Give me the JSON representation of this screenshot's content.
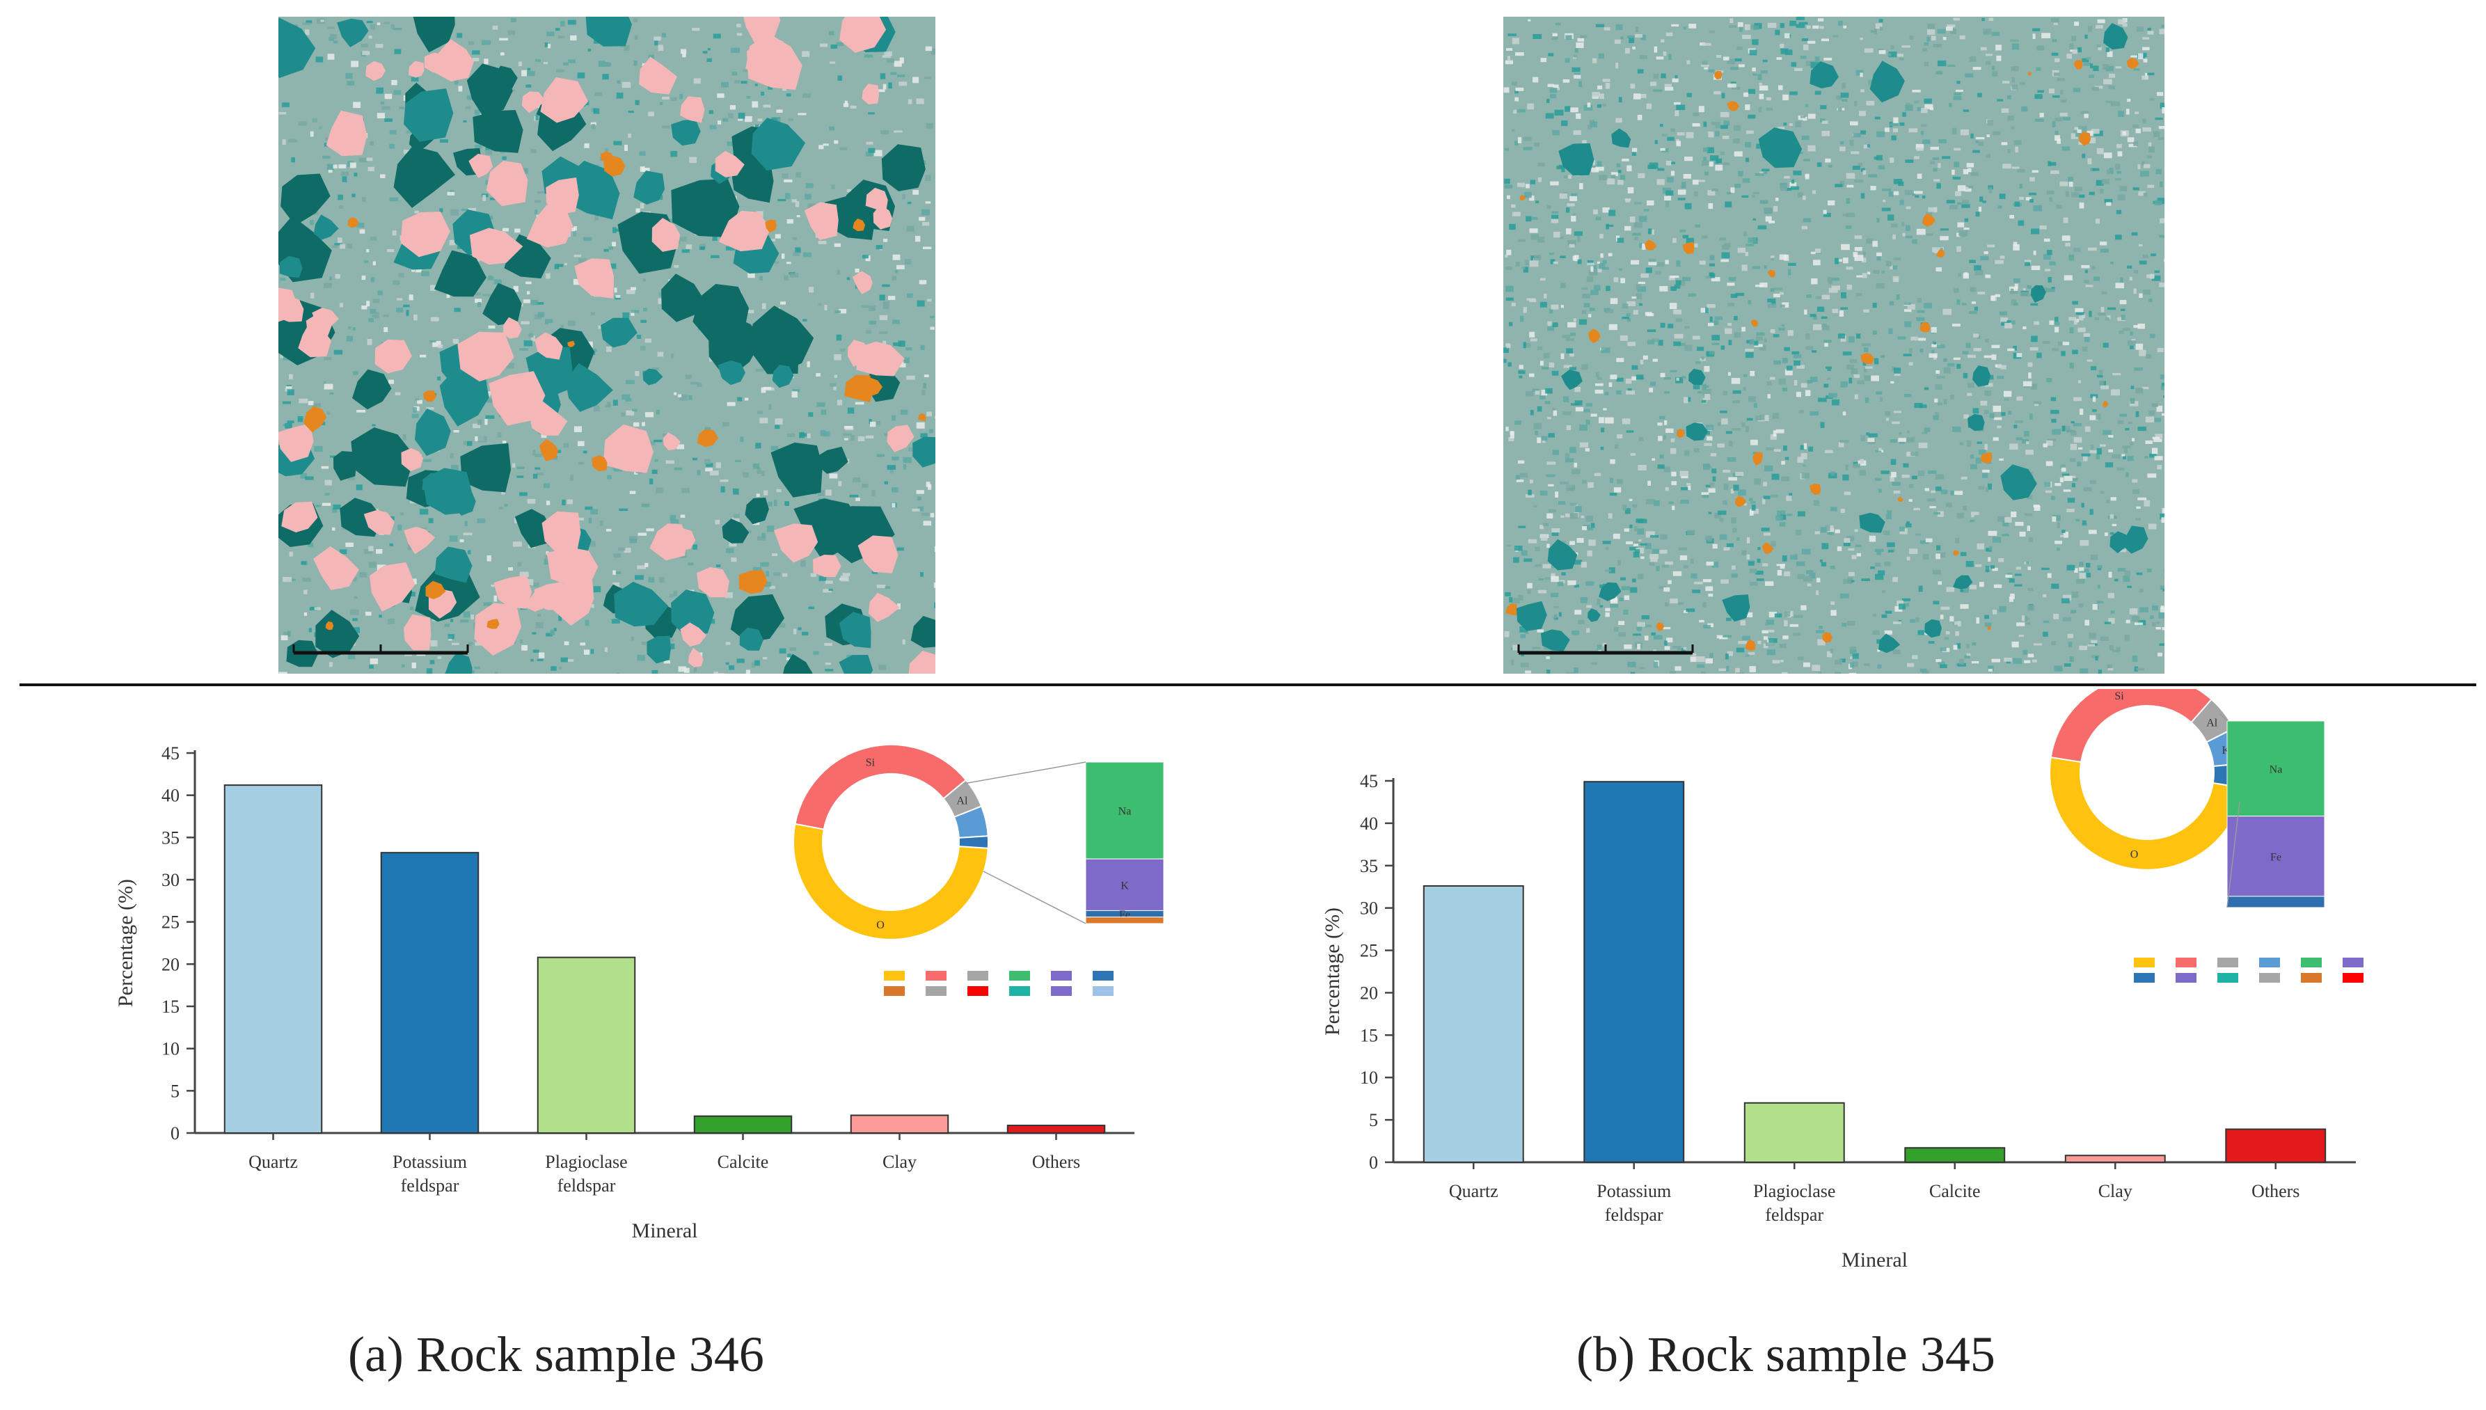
{
  "colors": {
    "quartz": "#a6cee3",
    "potassium_feldspar": "#1f78b4",
    "plagioclase_feldspar": "#b2df8a",
    "calcite": "#33a02c",
    "clay": "#fb9a99",
    "others": "#e31a1c",
    "micro_matrix": "#8fb3ad",
    "micro_teal": "#1e8c8c",
    "micro_dark": "#0e6b66",
    "micro_pink": "#f4b6b6",
    "micro_orange": "#e5861e"
  },
  "chart_data": [
    {
      "type": "bar",
      "caption": "(a) Rock sample 346",
      "categories": [
        "Quartz",
        "Potassium feldspar",
        "Plagioclase feldspar",
        "Calcite",
        "Clay",
        "Others"
      ],
      "category_lines": [
        [
          "Quartz"
        ],
        [
          "Potassium",
          "feldspar"
        ],
        [
          "Plagioclase",
          "feldspar"
        ],
        [
          "Calcite"
        ],
        [
          "Clay"
        ],
        [
          "Others"
        ]
      ],
      "values": [
        41.2,
        33.2,
        20.8,
        2.0,
        2.1,
        0.9
      ],
      "xlabel": "Mineral",
      "ylabel": "Percentage (%)",
      "ylim": [
        0,
        45
      ],
      "yticks": [
        0,
        5,
        10,
        15,
        20,
        25,
        30,
        35,
        40,
        45
      ],
      "grid": false,
      "legend": "none"
    },
    {
      "type": "bar",
      "caption": "(b) Rock sample 345",
      "categories": [
        "Quartz",
        "Potassium feldspar",
        "Plagioclase feldspar",
        "Calcite",
        "Clay",
        "Others"
      ],
      "category_lines": [
        [
          "Quartz"
        ],
        [
          "Potassium",
          "feldspar"
        ],
        [
          "Plagioclase",
          "feldspar"
        ],
        [
          "Calcite"
        ],
        [
          "Clay"
        ],
        [
          "Others"
        ]
      ],
      "values": [
        32.6,
        44.9,
        7.0,
        1.7,
        0.8,
        3.9
      ],
      "xlabel": "Mineral",
      "ylabel": "Percentage (%)",
      "ylim": [
        0,
        45
      ],
      "yticks": [
        0,
        5,
        10,
        15,
        20,
        25,
        30,
        35,
        40,
        45
      ],
      "grid": false,
      "legend": "none"
    }
  ],
  "inset_a": {
    "donut_labels": [
      "O",
      "Si",
      "Al"
    ],
    "donut": [
      {
        "value": 52,
        "color": "#ffc20e"
      },
      {
        "value": 36,
        "color": "#f76b6b"
      },
      {
        "value": 5,
        "color": "#a6a6a6"
      },
      {
        "value": 5,
        "color": "#5b9bd5"
      },
      {
        "value": 2,
        "color": "#2e75b6"
      }
    ],
    "stack_labels": [
      "Na",
      "K",
      "Fe"
    ],
    "stack": [
      {
        "value": 60,
        "color": "#3dbd6f"
      },
      {
        "value": 32,
        "color": "#7e6ac8"
      },
      {
        "value": 4,
        "color": "#2f6fb0"
      },
      {
        "value": 4,
        "color": "#d9782a"
      }
    ],
    "legend_colors": [
      "#ffc20e",
      "#f76b6b",
      "#a6a6a6",
      "#3dbd6f",
      "#7e6ac8",
      "#2e75b6",
      "#d9782a",
      "#a6a6a6",
      "#ff0000",
      "#1fb3a6",
      "#7e6ac8",
      "#9dc3e6"
    ]
  },
  "inset_b": {
    "donut_labels": [
      "O",
      "Si",
      "Al",
      "K"
    ],
    "donut": [
      {
        "value": 50,
        "color": "#ffc20e"
      },
      {
        "value": 34,
        "color": "#f76b6b"
      },
      {
        "value": 6,
        "color": "#a6a6a6"
      },
      {
        "value": 6,
        "color": "#5b9bd5"
      },
      {
        "value": 4,
        "color": "#2e75b6"
      }
    ],
    "stack_labels": [
      "Na",
      "Fe"
    ],
    "stack": [
      {
        "value": 51,
        "color": "#3dbd6f"
      },
      {
        "value": 43,
        "color": "#7e6ac8"
      },
      {
        "value": 6,
        "color": "#2f6fb0"
      }
    ],
    "legend_colors": [
      "#ffc20e",
      "#f76b6b",
      "#a6a6a6",
      "#5b9bd5",
      "#3dbd6f",
      "#7e6ac8",
      "#2e75b6",
      "#7e6ac8",
      "#1fb3a6",
      "#a6a6a6",
      "#d9782a",
      "#ff0000"
    ]
  }
}
